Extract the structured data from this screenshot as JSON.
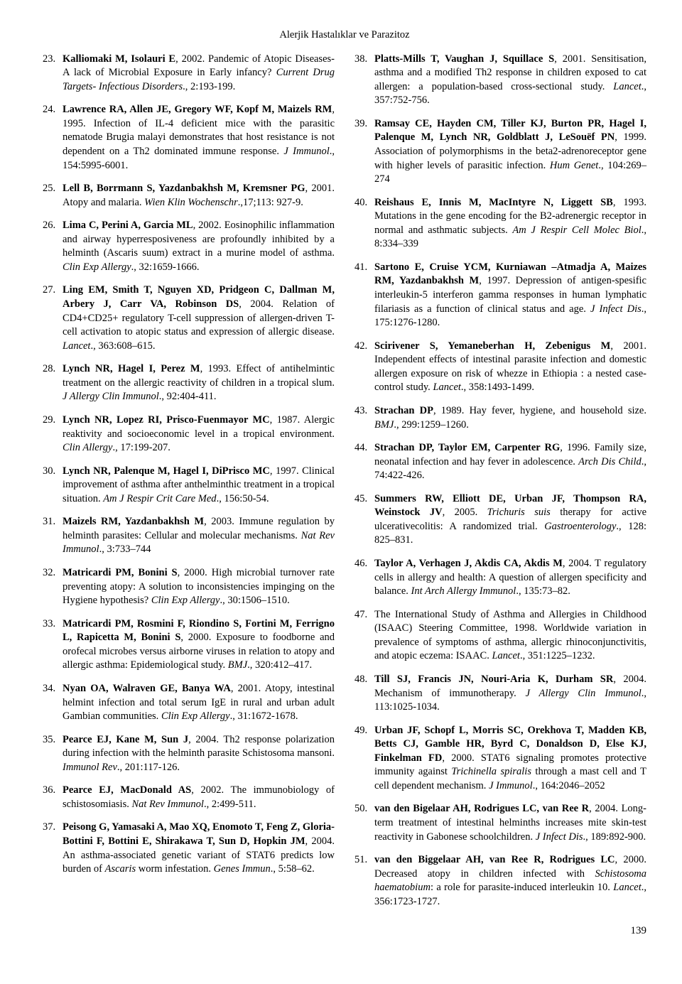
{
  "header": {
    "title": "Alerjik Hastalıklar ve Parazitoz"
  },
  "pageNumber": "139",
  "leftRefs": [
    {
      "n": "23.",
      "authors": "Kalliomaki M, Isolauri E",
      "year": ", 2002. ",
      "text1": "Pandemic of Atopic Diseases- A lack of Microbial Exposure in Early infancy? ",
      "journal": "Current Drug Targets- Infectious Disorders",
      "text2": "., 2:193-199."
    },
    {
      "n": "24.",
      "authors": "Lawrence RA, Allen JE, Gregory WF, Kopf M, Maizels RM",
      "year": ", 1995. ",
      "text1": "Infection of IL-4 deficient mice with the parasitic nematode Brugia malayi demonstrates that host resistance is not dependent on a Th2 dominated immune response. ",
      "journal": "J Immunol",
      "text2": "., 154:5995-6001."
    },
    {
      "n": "25.",
      "authors": "Lell B, Borrmann S, Yazdanbakhsh M, Kremsner PG",
      "year": ", 2001. ",
      "text1": "Atopy and malaria. ",
      "journal": "Wien Klin Wochenschr",
      "text2": ".,17;113: 927-9."
    },
    {
      "n": "26.",
      "authors": "Lima C, Perini A, Garcia ML",
      "year": ", 2002. ",
      "text1": "Eosinophilic inflammation and airway hyperresposiveness are profoundly inhibited by a helminth (Ascaris suum) extract in a murine model of asthma. ",
      "journal": "Clin Exp Allergy",
      "text2": "., 32:1659-1666."
    },
    {
      "n": "27.",
      "authors": "Ling EM, Smith T, Nguyen XD, Pridgeon C, Dallman M, Arbery J, Carr VA, Robinson DS",
      "year": ", 2004. ",
      "text1": "Relation of CD4+CD25+ regulatory T-cell suppression of allergen-driven T-cell activation to atopic status and expression of allergic disease. ",
      "journal": "Lancet",
      "text2": "., 363:608–615."
    },
    {
      "n": "28.",
      "authors": "Lynch NR, Hagel I, Perez M",
      "year": ", 1993. ",
      "text1": "Effect of antihelmintic treatment on the allergic reactivity of children in a tropical slum. ",
      "journal": "J Allergy Clin Immunol",
      "text2": "., 92:404-411."
    },
    {
      "n": "29.",
      "authors": "Lynch NR, Lopez RI, Prisco-Fuenmayor MC",
      "year": ", 1987. ",
      "text1": "Alergic reaktivity and socioeconomic level in a tropical environment. ",
      "journal": "Clin Allergy",
      "text2": "., 17:199-207."
    },
    {
      "n": "30.",
      "authors": "Lynch NR, Palenque M, Hagel I, DiPrisco MC",
      "year": ", 1997. ",
      "text1": "Clinical improvement of asthma after anthelminthic treatment in a tropical situation. ",
      "journal": "Am J Respir Crit Care Med",
      "text2": "., 156:50-54."
    },
    {
      "n": "31.",
      "authors": "Maizels RM, Yazdanbakhsh M",
      "year": ", 2003. ",
      "text1": "Immune regulation by helminth parasites: Cellular and molecular mechanisms. ",
      "journal": "Nat Rev Immunol",
      "text2": "., 3:733–744"
    },
    {
      "n": "32.",
      "authors": "Matricardi PM, Bonini S",
      "year": ", 2000. ",
      "text1": "High microbial turnover rate preventing atopy: A solution to inconsistencies impinging on the Hygiene hypothesis? ",
      "journal": "Clin Exp Allergy",
      "text2": "., 30:1506–1510."
    },
    {
      "n": "33.",
      "authors": "Matricardi PM, Rosmini F, Riondino S, Fortini M, Ferrigno L, Rapicetta M, Bonini S",
      "year": ", 2000. ",
      "text1": "Exposure to foodborne and orofecal microbes versus airborne viruses in relation to atopy and allergic asthma: Epidemiological study. ",
      "journal": "BMJ",
      "text2": "., 320:412–417."
    },
    {
      "n": "34.",
      "authors": "Nyan OA, Walraven GE, Banya WA",
      "year": ", 2001. ",
      "text1": "Atopy, intestinal helmint infection and total serum IgE in rural and urban adult Gambian communities. ",
      "journal": "Clin Exp Allergy",
      "text2": "., 31:1672-1678."
    },
    {
      "n": "35.",
      "authors": "Pearce EJ, Kane M, Sun J",
      "year": ", 2004. ",
      "text1": "Th2 response polarization during infection with the helminth parasite Schistosoma mansoni. ",
      "journal": "Immunol Rev",
      "text2": "., 201:117-126."
    },
    {
      "n": "36.",
      "authors": "Pearce EJ, MacDonald AS",
      "year": ", 2002. ",
      "text1": "The immunobiology of schistosomiasis. ",
      "journal": "Nat Rev Immunol",
      "text2": "., 2:499-511."
    },
    {
      "n": "37.",
      "authors": "Peisong G, Yamasaki A, Mao XQ, Enomoto T, Feng Z, Gloria-Bottini F, Bottini E, Shirakawa T, Sun D, Hopkin JM",
      "year": ", 2004. ",
      "text1": "An asthma-associated genetic variant of STAT6 predicts low burden of ",
      "italicMid": "Ascaris",
      "text1b": " worm infestation. ",
      "journal": "Genes Immun",
      "text2": "., 5:58–62."
    }
  ],
  "rightRefs": [
    {
      "n": "38.",
      "authors": "Platts-Mills T, Vaughan J, Squillace S",
      "year": ", 2001. ",
      "text1": "Sensitisation, asthma and a modified Th2 response in children exposed to cat allergen: a population-based cross-sectional study. ",
      "journal": "Lancet",
      "text2": "., 357:752-756."
    },
    {
      "n": "39.",
      "authors": "Ramsay CE, Hayden CM, Tiller KJ, Burton PR, Hagel I, Palenque M, Lynch NR, Goldblatt J, LeSouëf PN",
      "year": ", 1999. ",
      "text1": "Association of polymorphisms in the beta2-adrenoreceptor gene with higher levels of parasitic infection. ",
      "journal": "Hum Genet",
      "text2": "., 104:269–274"
    },
    {
      "n": "40.",
      "authors": "Reishaus E, Innis M, MacIntyre N, Liggett SB",
      "year": ", 1993. ",
      "text1": "Mutations in the gene encoding for the B2-adrenergic receptor in normal and asthmatic subjects. ",
      "journal": "Am J Respir Cell Molec Biol",
      "text2": "., 8:334–339"
    },
    {
      "n": "41.",
      "authors": "Sartono E, Cruise YCM, Kurniawan –Atmadja A, Maizes RM, Yazdanbakhsh M",
      "year": ", 1997. ",
      "text1": "Depression of antigen-spesific interleukin-5 interferon gamma responses in human lymphatic filariasis as a function of clinical status and age. ",
      "journal": "J Infect Dis",
      "text2": "., 175:1276-1280."
    },
    {
      "n": "42.",
      "authors": "Scirivener S, Yemaneberhan H, Zebenigus M",
      "year": ", 2001. ",
      "text1": "Independent effects of intestinal parasite infection and domestic allergen exposure on risk of whezze in Ethiopia : a nested case-control study. ",
      "journal": "Lancet",
      "text2": "., 358:1493-1499."
    },
    {
      "n": "43.",
      "authors": "Strachan DP",
      "year": ", 1989. ",
      "text1": "Hay fever, hygiene, and household size. ",
      "journal": "BMJ",
      "text2": "., 299:1259–1260."
    },
    {
      "n": "44.",
      "authors": "Strachan DP, Taylor EM, Carpenter RG",
      "year": ", 1996. ",
      "text1": "Family size, neonatal infection and hay fever in adolescence. ",
      "journal": "Arch Dis Child",
      "text2": "., 74:422-426."
    },
    {
      "n": "45.",
      "authors": "Summers RW, Elliott DE, Urban JF, Thompson RA, Weinstock JV",
      "year": ", 2005. ",
      "italicMid": "Trichuris suis",
      "text1b": " therapy for active ulcerativecolitis: A randomized trial. ",
      "journal": "Gastroenterology",
      "text2": "., 128: 825–831."
    },
    {
      "n": "46.",
      "authors": "Taylor A, Verhagen J, Akdis CA, Akdis M",
      "year": ", 2004. ",
      "text1": "T regulatory cells in allergy and health: A question of allergen specificity and balance. ",
      "journal": "Int Arch Allergy Immunol",
      "text2": "., 135:73–82."
    },
    {
      "n": "47.",
      "authors": "",
      "plain": "The International Study of Asthma and Allergies in Childhood (ISAAC) Steering Committee, 1998. Worldwide variation in prevalence of symptoms of asthma, allergic rhinoconjunctivitis, and atopic eczema: ISAAC. ",
      "journal": "Lancet",
      "text2": "., 351:1225–1232."
    },
    {
      "n": "48.",
      "authors": "Till SJ, Francis JN, Nouri-Aria K, Durham SR",
      "year": ", 2004. ",
      "text1": "Mechanism of immunotherapy. ",
      "journal": "J Allergy Clin Immunol",
      "text2": "., 113:1025-1034."
    },
    {
      "n": "49.",
      "authors": "Urban JF, Schopf L, Morris SC, Orekhova T, Madden KB, Betts CJ, Gamble HR, Byrd C, Donaldson D, Else KJ, Finkelman FD",
      "year": ", 2000. ",
      "text1": "STAT6 signaling promotes protective immunity against ",
      "italicMid": "Trichinella spiralis",
      "text1b": " through a mast cell and T cell dependent mechanism. ",
      "journal": "J Immunol",
      "text2": "., 164:2046–2052"
    },
    {
      "n": "50.",
      "authors": "van den Bigelaar AH, Rodrigues LC, van Ree R",
      "year": ", 2004. ",
      "text1": "Long-term treatment of intestinal helminths increases mite skin-test reactivity in Gabonese schoolchildren. ",
      "journal": "J Infect Dis",
      "text2": "., 189:892-900."
    },
    {
      "n": "51.",
      "authors": "van den Biggelaar AH, van Ree R, Rodrigues LC",
      "year": ", 2000. ",
      "text1": "Decreased atopy in children infected with ",
      "italicMid": "Schistosoma haematobium",
      "text1b": ": a role for parasite-induced interleukin 10. ",
      "journal": "Lancet",
      "text2": "., 356:1723-1727."
    }
  ]
}
